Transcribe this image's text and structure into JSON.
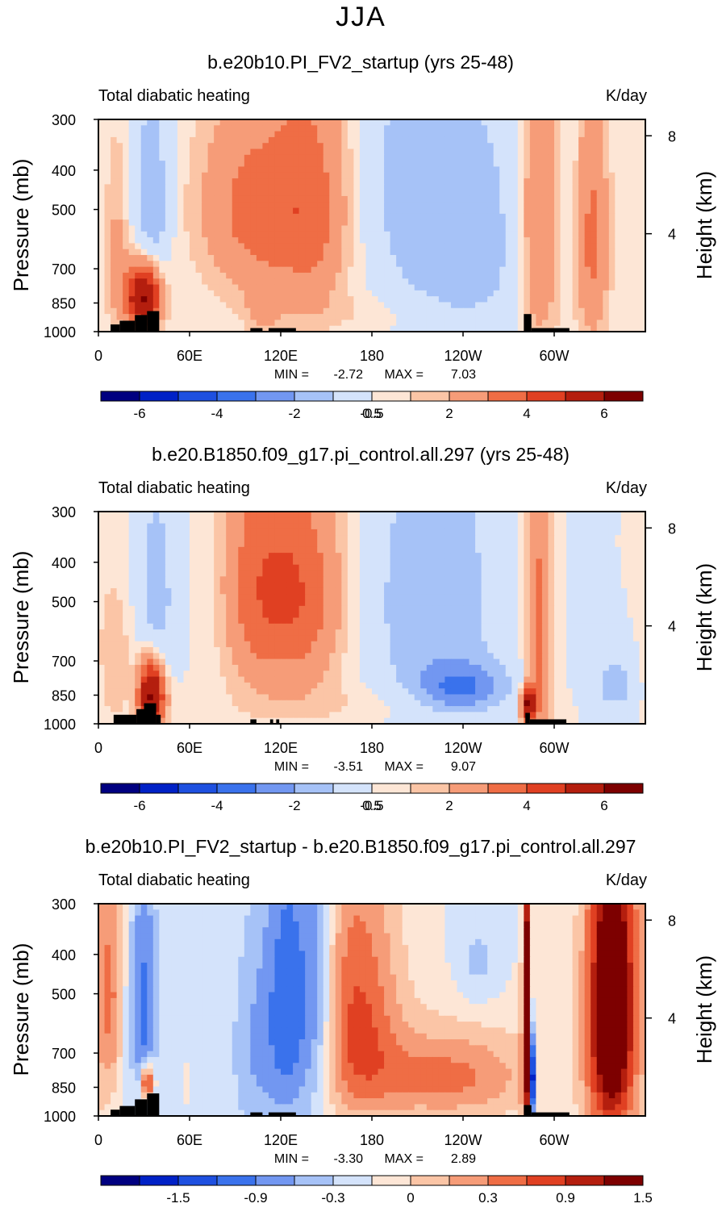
{
  "main_title": "JJA",
  "chart_data": [
    {
      "type": "heatmap",
      "title": "b.e20b10.PI_FV2_startup (yrs 25-48)",
      "left_label": "Total diabatic heating",
      "right_label": "K/day",
      "ylabel": "Pressure (mb)",
      "y2label": "Height (km)",
      "yticks": [
        "300",
        "400",
        "500",
        "700",
        "850",
        "1000"
      ],
      "y2ticks": [
        "8",
        "4"
      ],
      "xticks": [
        "0",
        "60E",
        "120E",
        "180",
        "120W",
        "60W"
      ],
      "min_label": "MIN =",
      "min_value": "-2.72",
      "max_label": "MAX =",
      "max_value": "7.03",
      "colorbar_labels": [
        "-6",
        "-4",
        "-2",
        "-0.5",
        "0.5",
        "2",
        "4",
        "6"
      ],
      "features": [
        {
          "lon": 30,
          "p": 820,
          "v": 6.5,
          "w": 8,
          "h": 110
        },
        {
          "lon": 35,
          "p": 500,
          "v": -2.0,
          "w": 8,
          "h": 200
        },
        {
          "lon": 12,
          "p": 650,
          "v": 1.2,
          "w": 6,
          "h": 250
        },
        {
          "lon": 100,
          "p": 500,
          "v": 2.3,
          "w": 25,
          "h": 200
        },
        {
          "lon": 140,
          "p": 500,
          "v": 2.2,
          "w": 18,
          "h": 250
        },
        {
          "lon": 108,
          "p": 880,
          "v": 1.0,
          "w": 8,
          "h": 100
        },
        {
          "lon": 200,
          "p": 400,
          "v": -1.0,
          "w": 18,
          "h": 250
        },
        {
          "lon": 240,
          "p": 600,
          "v": -1.8,
          "w": 28,
          "h": 300
        },
        {
          "lon": 290,
          "p": 550,
          "v": 2.2,
          "w": 10,
          "h": 350
        },
        {
          "lon": 325,
          "p": 600,
          "v": 2.3,
          "w": 8,
          "h": 300
        },
        {
          "lon": 310,
          "p": 550,
          "v": -0.5,
          "w": 5,
          "h": 200
        },
        {
          "lon": 180,
          "p": 900,
          "v": 0.4,
          "w": 60,
          "h": 80
        }
      ],
      "topography": [
        {
          "lon0": 8,
          "lon1": 14,
          "p": 960
        },
        {
          "lon0": 14,
          "lon1": 24,
          "p": 940
        },
        {
          "lon0": 24,
          "lon1": 32,
          "p": 910
        },
        {
          "lon0": 32,
          "lon1": 40,
          "p": 890
        },
        {
          "lon0": 100,
          "lon1": 108,
          "p": 980
        },
        {
          "lon0": 112,
          "lon1": 130,
          "p": 980
        },
        {
          "lon0": 280,
          "lon1": 285,
          "p": 905
        },
        {
          "lon0": 285,
          "lon1": 310,
          "p": 980
        }
      ]
    },
    {
      "type": "heatmap",
      "title": "b.e20.B1850.f09_g17.pi_control.all.297 (yrs 25-48)",
      "left_label": "Total diabatic heating",
      "right_label": "K/day",
      "ylabel": "Pressure (mb)",
      "y2label": "Height (km)",
      "yticks": [
        "300",
        "400",
        "500",
        "700",
        "850",
        "1000"
      ],
      "y2ticks": [
        "8",
        "4"
      ],
      "xticks": [
        "0",
        "60E",
        "120E",
        "180",
        "120W",
        "60W"
      ],
      "min_label": "MIN =",
      "min_value": "-3.51",
      "max_label": "MAX =",
      "max_value": "9.07",
      "colorbar_labels": [
        "-6",
        "-4",
        "-2",
        "-0.5",
        "0.5",
        "2",
        "4",
        "6"
      ],
      "features": [
        {
          "lon": 35,
          "p": 850,
          "v": 6.5,
          "w": 6,
          "h": 120
        },
        {
          "lon": 38,
          "p": 500,
          "v": -1.7,
          "w": 8,
          "h": 200
        },
        {
          "lon": 130,
          "p": 480,
          "v": 3.0,
          "w": 22,
          "h": 220
        },
        {
          "lon": 100,
          "p": 450,
          "v": 1.5,
          "w": 15,
          "h": 250
        },
        {
          "lon": 240,
          "p": 820,
          "v": -2.8,
          "w": 20,
          "h": 80
        },
        {
          "lon": 220,
          "p": 500,
          "v": -1.8,
          "w": 30,
          "h": 300
        },
        {
          "lon": 290,
          "p": 600,
          "v": 2.5,
          "w": 6,
          "h": 350
        },
        {
          "lon": 283,
          "p": 900,
          "v": 6.0,
          "w": 3,
          "h": 60
        },
        {
          "lon": 340,
          "p": 800,
          "v": -1.5,
          "w": 10,
          "h": 100
        },
        {
          "lon": 10,
          "p": 700,
          "v": 1.0,
          "w": 8,
          "h": 200
        },
        {
          "lon": 180,
          "p": 900,
          "v": 0.5,
          "w": 60,
          "h": 80
        }
      ],
      "topography": [
        {
          "lon0": 10,
          "lon1": 25,
          "p": 950
        },
        {
          "lon0": 25,
          "lon1": 30,
          "p": 920
        },
        {
          "lon0": 30,
          "lon1": 38,
          "p": 890
        },
        {
          "lon0": 38,
          "lon1": 41,
          "p": 950
        },
        {
          "lon0": 100,
          "lon1": 104,
          "p": 975
        },
        {
          "lon0": 113,
          "lon1": 115,
          "p": 975
        },
        {
          "lon0": 117,
          "lon1": 119,
          "p": 975
        },
        {
          "lon0": 281,
          "lon1": 284,
          "p": 940
        },
        {
          "lon0": 284,
          "lon1": 308,
          "p": 975
        }
      ]
    },
    {
      "type": "heatmap",
      "title": "b.e20b10.PI_FV2_startup - b.e20.B1850.f09_g17.pi_control.all.297",
      "left_label": "Total diabatic heating",
      "right_label": "K/day",
      "ylabel": "Pressure (mb)",
      "y2label": "Height (km)",
      "yticks": [
        "300",
        "400",
        "500",
        "700",
        "850",
        "1000"
      ],
      "y2ticks": [
        "8",
        "4"
      ],
      "xticks": [
        "0",
        "60E",
        "120E",
        "180",
        "120W",
        "60W"
      ],
      "min_label": "MIN =",
      "min_value": "-3.30",
      "max_label": "MAX =",
      "max_value": "2.89",
      "colorbar_labels": [
        "-1.5",
        "-0.9",
        "-0.3",
        "0",
        "0.3",
        "0.9",
        "1.5"
      ],
      "features": [
        {
          "lon": 30,
          "p": 550,
          "v": -1.0,
          "w": 6,
          "h": 300
        },
        {
          "lon": 8,
          "p": 500,
          "v": 0.9,
          "w": 5,
          "h": 250
        },
        {
          "lon": 125,
          "p": 550,
          "v": -1.2,
          "w": 12,
          "h": 350
        },
        {
          "lon": 145,
          "p": 500,
          "v": -0.8,
          "w": 8,
          "h": 300
        },
        {
          "lon": 170,
          "p": 550,
          "v": 1.2,
          "w": 20,
          "h": 300
        },
        {
          "lon": 230,
          "p": 800,
          "v": 1.0,
          "w": 40,
          "h": 150
        },
        {
          "lon": 250,
          "p": 420,
          "v": -0.4,
          "w": 10,
          "h": 80
        },
        {
          "lon": 282,
          "p": 650,
          "v": 2.5,
          "w": 2,
          "h": 400
        },
        {
          "lon": 285,
          "p": 800,
          "v": -2.5,
          "w": 2,
          "h": 150
        },
        {
          "lon": 338,
          "p": 550,
          "v": 2.6,
          "w": 12,
          "h": 400
        },
        {
          "lon": 32,
          "p": 830,
          "v": 2.0,
          "w": 3,
          "h": 60
        },
        {
          "lon": 100,
          "p": 700,
          "v": -0.5,
          "w": 10,
          "h": 300
        }
      ],
      "topography": [
        {
          "lon0": 8,
          "lon1": 14,
          "p": 965
        },
        {
          "lon0": 14,
          "lon1": 24,
          "p": 945
        },
        {
          "lon0": 24,
          "lon1": 32,
          "p": 910
        },
        {
          "lon0": 32,
          "lon1": 40,
          "p": 880
        },
        {
          "lon0": 100,
          "lon1": 108,
          "p": 980
        },
        {
          "lon0": 112,
          "lon1": 130,
          "p": 980
        },
        {
          "lon0": 280,
          "lon1": 285,
          "p": 940
        },
        {
          "lon0": 285,
          "lon1": 310,
          "p": 980
        }
      ]
    }
  ],
  "palette": [
    "#000080",
    "#0021c6",
    "#1e50e0",
    "#3a72ec",
    "#7297f1",
    "#a6c2f7",
    "#d4e3fb",
    "#fde6d6",
    "#fbc5a6",
    "#f69c78",
    "#ef6d45",
    "#e04022",
    "#b41e0e",
    "#7d0000"
  ]
}
